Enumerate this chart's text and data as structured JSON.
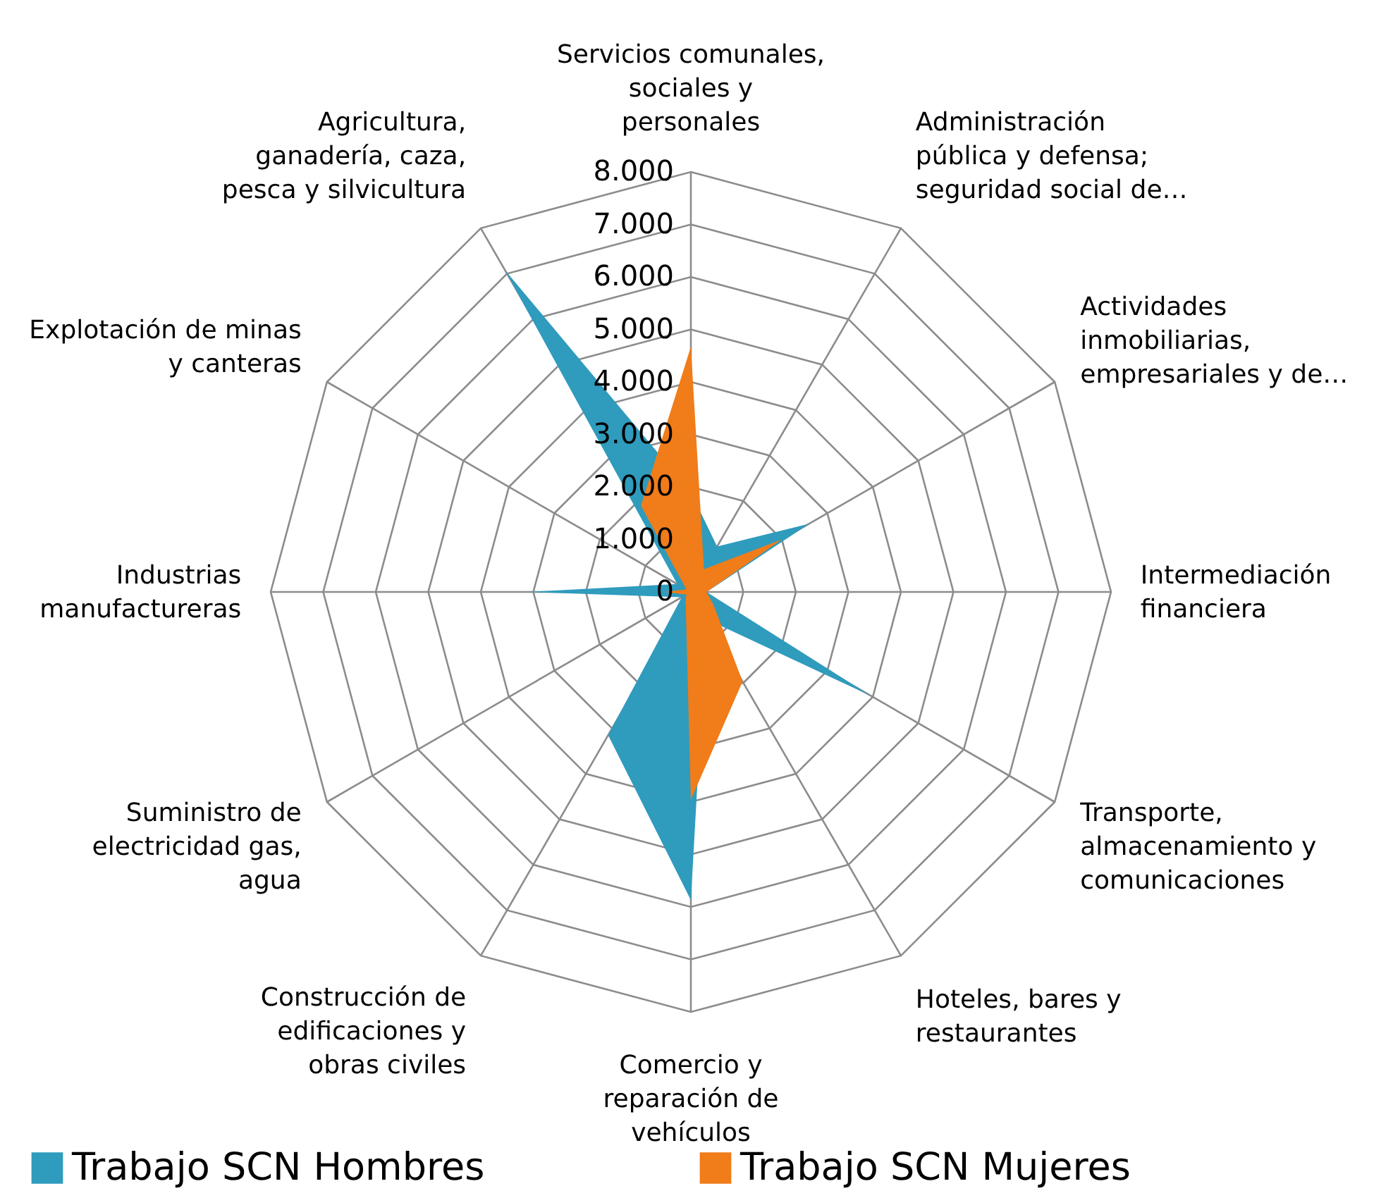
{
  "chart_data": {
    "type": "radar",
    "categories": [
      "Servicios comunales, sociales y personales",
      "Administración pública y defensa; seguridad social de…",
      "Actividades inmobiliarias, empresariales y de…",
      "Intermediación financiera",
      "Transporte, almacenamiento y comunicaciones",
      "Hoteles, bares y restaurantes",
      "Comercio y reparación de vehículos",
      "Construcción de edificaciones y obras civiles",
      "Suministro de electricidad gas, agua",
      "Industrias manufactureras",
      "Explotación de minas y canteras",
      "Agricultura, ganadería, caza, pesca y silvicultura"
    ],
    "series": [
      {
        "name": "Trabajo SCN Hombres",
        "color": "#2f9bbd",
        "values": [
          1900,
          1000,
          2600,
          300,
          3950,
          600,
          5870,
          3150,
          200,
          3100,
          300,
          7080
        ]
      },
      {
        "name": "Trabajo SCN Mujeres",
        "color": "#f07c1a",
        "values": [
          4670,
          500,
          2000,
          300,
          500,
          1970,
          3960,
          200,
          100,
          500,
          100,
          1900
        ]
      }
    ],
    "ylim": [
      0,
      8000
    ],
    "yticks": [
      {
        "value": 0,
        "label": "0"
      },
      {
        "value": 1000,
        "label": "1.000"
      },
      {
        "value": 2000,
        "label": "2.000"
      },
      {
        "value": 3000,
        "label": "3.000"
      },
      {
        "value": 4000,
        "label": "4.000"
      },
      {
        "value": 5000,
        "label": "5.000"
      },
      {
        "value": 6000,
        "label": "6.000"
      },
      {
        "value": 7000,
        "label": "7.000"
      },
      {
        "value": 8000,
        "label": "8.000"
      }
    ],
    "grid": true,
    "legend": "bottom"
  }
}
